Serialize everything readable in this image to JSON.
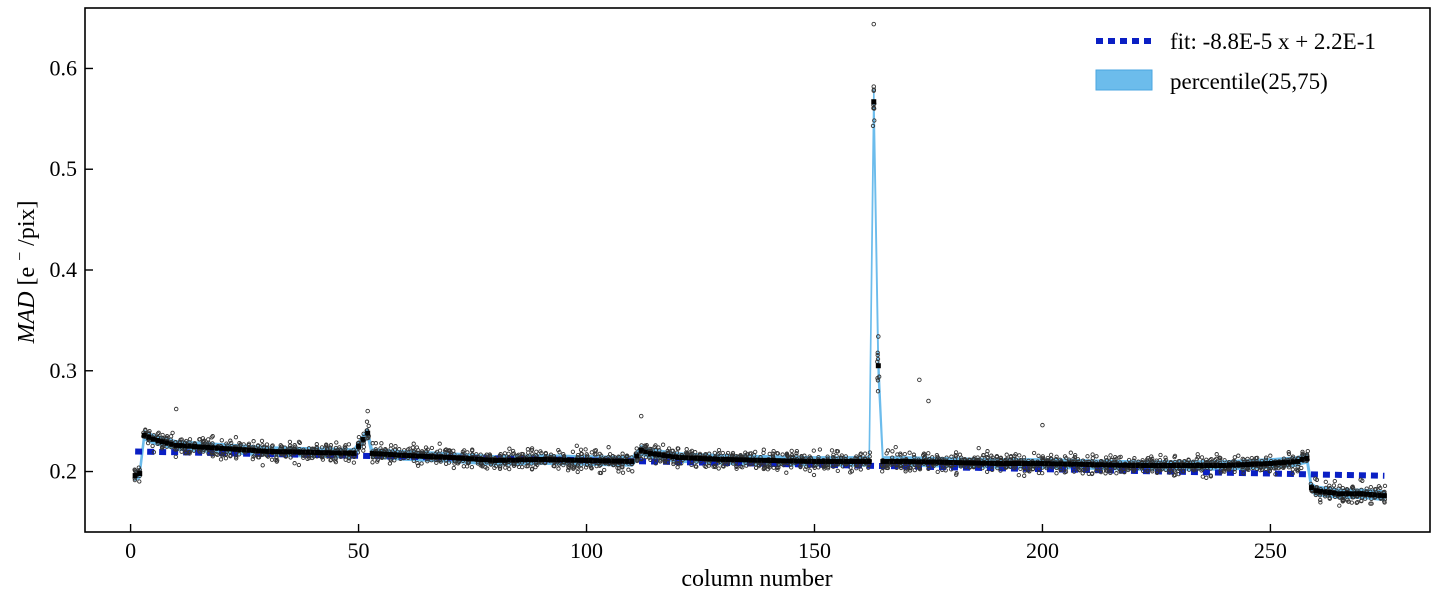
{
  "chart_data": {
    "type": "scatter",
    "xlabel": "column number",
    "ylabel_main": "MAD",
    "ylabel_unit": "[e",
    "ylabel_sup": "−",
    "ylabel_tail": "/pix]",
    "xlim": [
      -10,
      285
    ],
    "ylim": [
      0.14,
      0.66
    ],
    "xticks": [
      0,
      50,
      100,
      150,
      200,
      250
    ],
    "yticks": [
      0.2,
      0.3,
      0.4,
      0.5,
      0.6
    ],
    "xtick_labels": [
      "0",
      "50",
      "100",
      "150",
      "200",
      "250"
    ],
    "ytick_labels": [
      "0.2",
      "0.3",
      "0.4",
      "0.5",
      "0.6"
    ],
    "legend_position": "top-right",
    "legend": {
      "fit_label": "fit: -8.8E-5 x + 2.2E-1",
      "band_label": "percentile(25,75)"
    },
    "fit": {
      "slope": -8.8e-05,
      "intercept": 0.22,
      "x_range": [
        1,
        275
      ]
    },
    "colors": {
      "fit": "#0a1fc4",
      "band": "#6cbcec",
      "points": "#000000"
    },
    "column_range": [
      1,
      275
    ],
    "points_per_column": 8,
    "median_profile": [
      [
        1,
        0.196
      ],
      [
        2,
        0.198
      ],
      [
        3,
        0.236
      ],
      [
        5,
        0.232
      ],
      [
        10,
        0.226
      ],
      [
        20,
        0.223
      ],
      [
        30,
        0.22
      ],
      [
        40,
        0.219
      ],
      [
        49,
        0.218
      ],
      [
        51,
        0.232
      ],
      [
        52,
        0.238
      ],
      [
        53,
        0.218
      ],
      [
        60,
        0.216
      ],
      [
        70,
        0.214
      ],
      [
        80,
        0.211
      ],
      [
        90,
        0.212
      ],
      [
        100,
        0.211
      ],
      [
        110,
        0.21
      ],
      [
        112,
        0.221
      ],
      [
        114,
        0.218
      ],
      [
        120,
        0.214
      ],
      [
        130,
        0.212
      ],
      [
        140,
        0.211
      ],
      [
        150,
        0.21
      ],
      [
        161,
        0.21
      ],
      [
        162,
        0.21
      ],
      [
        163,
        0.567
      ],
      [
        164,
        0.305
      ],
      [
        165,
        0.21
      ],
      [
        166,
        0.21
      ],
      [
        170,
        0.21
      ],
      [
        180,
        0.209
      ],
      [
        190,
        0.208
      ],
      [
        200,
        0.208
      ],
      [
        210,
        0.207
      ],
      [
        220,
        0.206
      ],
      [
        230,
        0.206
      ],
      [
        240,
        0.206
      ],
      [
        250,
        0.208
      ],
      [
        256,
        0.21
      ],
      [
        257,
        0.212
      ],
      [
        258,
        0.213
      ],
      [
        259,
        0.184
      ],
      [
        260,
        0.181
      ],
      [
        265,
        0.178
      ],
      [
        270,
        0.178
      ],
      [
        275,
        0.176
      ]
    ],
    "outliers": [
      [
        163,
        0.644
      ],
      [
        163,
        0.582
      ],
      [
        163,
        0.578
      ],
      [
        164,
        0.334
      ],
      [
        173,
        0.291
      ],
      [
        175,
        0.27
      ],
      [
        10,
        0.262
      ],
      [
        52,
        0.26
      ],
      [
        112,
        0.255
      ],
      [
        200,
        0.246
      ]
    ]
  }
}
